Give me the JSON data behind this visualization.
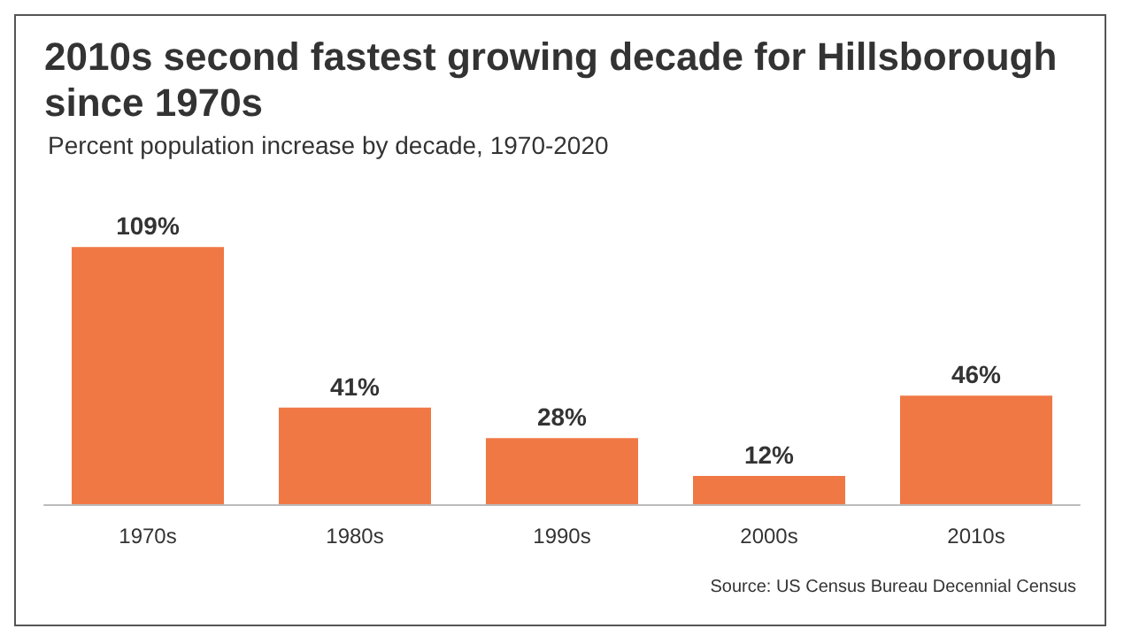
{
  "chart_data": {
    "type": "bar",
    "title": "2010s second fastest growing decade for Hillsborough since 1970s",
    "subtitle": "Percent population increase by decade, 1970-2020",
    "categories": [
      "1970s",
      "1980s",
      "1990s",
      "2000s",
      "2010s"
    ],
    "values": [
      109,
      41,
      28,
      12,
      46
    ],
    "value_labels": [
      "109%",
      "41%",
      "28%",
      "12%",
      "46%"
    ],
    "color": "#f07845",
    "annotations": [
      "Source: US Census Bureau Decennial Census"
    ]
  }
}
